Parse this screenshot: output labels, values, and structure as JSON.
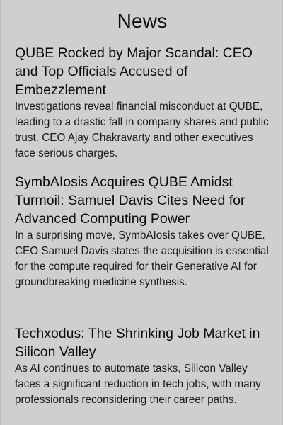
{
  "page": {
    "title": "News"
  },
  "articles": [
    {
      "headline": "QUBE Rocked by Major Scandal: CEO and Top Officials Accused of Embezzlement",
      "summary": "Investigations reveal financial misconduct at QUBE, leading to a drastic fall in company shares and public trust. CEO Ajay Chakravarty and other executives face serious charges."
    },
    {
      "headline": "SymbAIosis Acquires QUBE Amidst Turmoil: Samuel Davis Cites Need for Advanced Computing Power",
      "summary": "In a surprising move, SymbAIosis takes over QUBE. CEO Samuel Davis states the acquisition is essential for the compute required for their Generative AI for groundbreaking medicine synthesis."
    },
    {
      "headline": "Techxodus: The Shrinking Job Market in Silicon Valley",
      "summary": "As AI continues to automate tasks, Silicon Valley faces a significant reduction in tech jobs, with many professionals reconsidering their career paths."
    }
  ]
}
